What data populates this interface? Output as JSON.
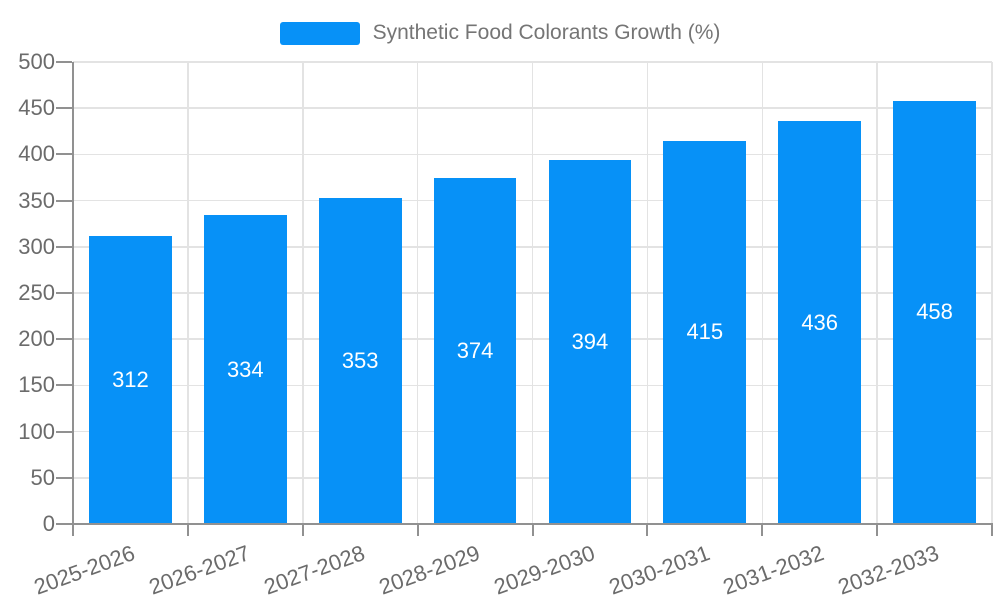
{
  "legend": {
    "label": "Synthetic Food Colorants Growth (%)"
  },
  "chart_data": {
    "type": "bar",
    "title": "Synthetic Food Colorants Growth (%)",
    "series_name": "Synthetic Food Colorants Growth (%)",
    "categories": [
      "2025-2026",
      "2026-2027",
      "2027-2028",
      "2028-2029",
      "2029-2030",
      "2030-2031",
      "2031-2032",
      "2032-2033"
    ],
    "values": [
      312,
      334,
      353,
      374,
      394,
      415,
      436,
      458
    ],
    "bar_value_labels": [
      "312",
      "334",
      "353",
      "374",
      "394",
      "415",
      "436",
      "458"
    ],
    "yticks": [
      0,
      50,
      100,
      150,
      200,
      250,
      300,
      350,
      400,
      450,
      500
    ],
    "ylim": [
      0,
      500
    ],
    "xlabel": "",
    "ylabel": "",
    "grid": true,
    "legend_position": "top-center",
    "x_label_rotation_deg": -20,
    "colors": {
      "bar": "#0791f7",
      "bar_label_text": "#ffffff",
      "axis_text": "#6b6b6b",
      "legend_text": "#757575",
      "axis_line": "#919191",
      "gridline": "#e3e3e3"
    }
  }
}
